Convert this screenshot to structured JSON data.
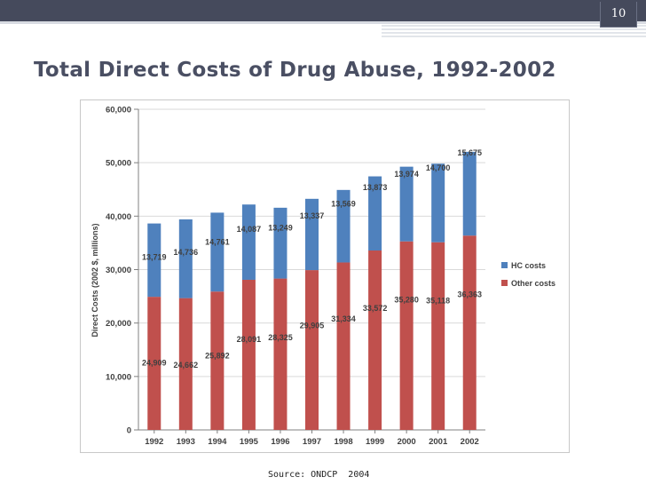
{
  "slide": {
    "number": "10",
    "title": "Total Direct Costs of Drug Abuse, 1992-2002",
    "source": "Source: ONDCP  2004"
  },
  "colors": {
    "hc": "#4f81bd",
    "other": "#c0504d",
    "header": "#454a5c",
    "title": "#4a4f63"
  },
  "chart_data": {
    "type": "bar",
    "stacked": true,
    "title": "",
    "xlabel": "",
    "ylabel": "Direct Costs (2002 $, millions)",
    "ylim": [
      0,
      60000
    ],
    "yticks": [
      0,
      10000,
      20000,
      30000,
      40000,
      50000,
      60000
    ],
    "ytick_labels": [
      "0",
      "10,000",
      "20,000",
      "30,000",
      "40,000",
      "50,000",
      "60,000"
    ],
    "grid": true,
    "legend_position": "right",
    "categories": [
      "1992",
      "1993",
      "1994",
      "1995",
      "1996",
      "1997",
      "1998",
      "1999",
      "2000",
      "2001",
      "2002"
    ],
    "series": [
      {
        "name": "Other costs",
        "color": "#c0504d",
        "values": [
          24909,
          24662,
          25892,
          28091,
          28325,
          29905,
          31334,
          33572,
          35280,
          35118,
          36363
        ],
        "labels": [
          "24,909",
          "24,662",
          "25,892",
          "28,091",
          "28,325",
          "29,905",
          "31,334",
          "33,572",
          "35,280",
          "35,118",
          "36,363"
        ]
      },
      {
        "name": "HC costs",
        "color": "#4f81bd",
        "values": [
          13719,
          14736,
          14761,
          14087,
          13249,
          13337,
          13569,
          13873,
          13974,
          14700,
          15675
        ],
        "labels": [
          "13,719",
          "14,736",
          "14,761",
          "14,087",
          "13,249",
          "13,337",
          "13,569",
          "13,873",
          "13,974",
          "14,700",
          "15,675"
        ]
      }
    ],
    "legend": [
      "HC costs",
      "Other costs"
    ]
  }
}
